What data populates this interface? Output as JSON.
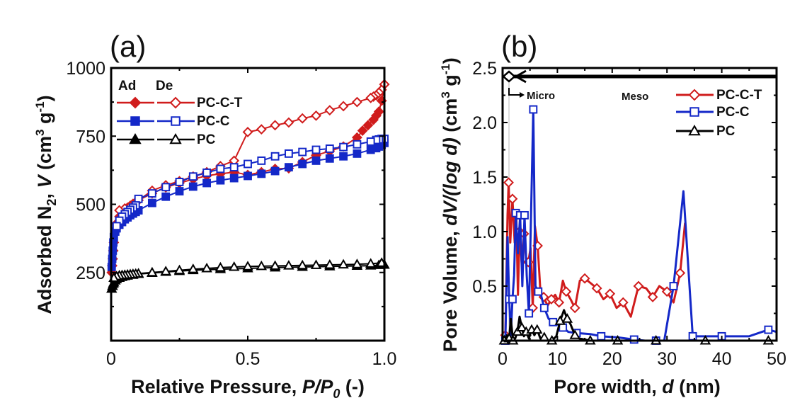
{
  "colors": {
    "pcct": "#d01c1c",
    "pcc": "#1428c8",
    "pc": "#000000",
    "frame": "#000000"
  },
  "chart_data": [
    {
      "panel": "(a)",
      "type": "line",
      "title": "",
      "xlabel": "Relative Pressure, P/P0 (-)",
      "xlabel_parts": {
        "main": "Relative Pressure, ",
        "italic": "P/P",
        "sub": "0",
        "tail": " (-)"
      },
      "ylabel": "Adsorbed N2, V (cm3 g-1)",
      "ylabel_parts": {
        "a": "Adsorbed N",
        "sub": "2",
        "b": ", ",
        "italic": "V",
        "c": " (cm",
        "sup1": "3",
        "d": " g",
        "sup2": "-1",
        "e": ")"
      },
      "xlim": [
        0,
        1.0
      ],
      "ylim": [
        0,
        1000
      ],
      "xticks": [
        0,
        0.5,
        1.0
      ],
      "xtick_labels": [
        "0",
        "0.5",
        "1.0"
      ],
      "yticks": [
        250,
        500,
        750,
        1000
      ],
      "ytick_labels": [
        "250",
        "500",
        "750",
        "1000"
      ],
      "grid": false,
      "legend": {
        "placement": "top-left",
        "header_ad": "Ad",
        "header_de": "De",
        "entries": [
          "PC-C-T",
          "PC-C",
          "PC"
        ]
      },
      "series": [
        {
          "name": "PC-C-T",
          "branch": "adsorption",
          "marker": "diamond-filled",
          "color_key": "pcct",
          "x": [
            0.002,
            0.004,
            0.006,
            0.008,
            0.01,
            0.015,
            0.02,
            0.03,
            0.04,
            0.05,
            0.06,
            0.07,
            0.08,
            0.09,
            0.1,
            0.15,
            0.2,
            0.25,
            0.3,
            0.35,
            0.4,
            0.45,
            0.5,
            0.55,
            0.6,
            0.65,
            0.7,
            0.75,
            0.8,
            0.85,
            0.9,
            0.92,
            0.94,
            0.96,
            0.97,
            0.98,
            0.99,
            1.0
          ],
          "y": [
            250,
            275,
            300,
            330,
            360,
            400,
            430,
            455,
            468,
            478,
            488,
            495,
            502,
            508,
            515,
            540,
            562,
            578,
            592,
            605,
            612,
            618,
            608,
            618,
            630,
            632,
            655,
            680,
            695,
            712,
            745,
            770,
            790,
            810,
            825,
            840,
            880,
            940
          ]
        },
        {
          "name": "PC-C-T",
          "branch": "desorption",
          "marker": "diamond-open",
          "color_key": "pcct",
          "x": [
            1.0,
            0.99,
            0.98,
            0.97,
            0.96,
            0.95,
            0.9,
            0.85,
            0.8,
            0.75,
            0.7,
            0.65,
            0.6,
            0.55,
            0.5,
            0.45,
            0.4,
            0.35,
            0.3,
            0.25,
            0.2,
            0.15,
            0.1,
            0.07,
            0.05,
            0.03
          ],
          "y": [
            940,
            920,
            910,
            900,
            895,
            890,
            875,
            860,
            845,
            825,
            815,
            800,
            790,
            775,
            765,
            660,
            640,
            618,
            602,
            585,
            570,
            550,
            515,
            492,
            485,
            478
          ]
        },
        {
          "name": "PC-C",
          "branch": "adsorption",
          "marker": "square-filled",
          "color_key": "pcc",
          "x": [
            0.002,
            0.004,
            0.006,
            0.008,
            0.01,
            0.015,
            0.02,
            0.03,
            0.04,
            0.05,
            0.06,
            0.07,
            0.08,
            0.09,
            0.1,
            0.15,
            0.2,
            0.25,
            0.3,
            0.35,
            0.4,
            0.45,
            0.5,
            0.55,
            0.6,
            0.65,
            0.7,
            0.75,
            0.8,
            0.85,
            0.9,
            0.95,
            0.97,
            0.98,
            0.99,
            1.0
          ],
          "y": [
            270,
            300,
            330,
            360,
            380,
            400,
            412,
            425,
            435,
            445,
            452,
            460,
            466,
            472,
            478,
            505,
            528,
            548,
            565,
            578,
            588,
            596,
            604,
            612,
            622,
            636,
            648,
            660,
            668,
            676,
            686,
            700,
            706,
            712,
            718,
            725
          ]
        },
        {
          "name": "PC-C",
          "branch": "desorption",
          "marker": "square-open",
          "color_key": "pcc",
          "x": [
            1.0,
            0.99,
            0.98,
            0.97,
            0.95,
            0.9,
            0.85,
            0.8,
            0.75,
            0.7,
            0.65,
            0.6,
            0.55,
            0.5,
            0.45,
            0.4,
            0.35,
            0.3,
            0.25,
            0.2,
            0.15,
            0.1,
            0.09,
            0.08,
            0.07,
            0.06,
            0.05,
            0.04,
            0.03,
            0.02
          ],
          "y": [
            740,
            740,
            738,
            736,
            730,
            720,
            710,
            704,
            700,
            692,
            686,
            676,
            660,
            648,
            636,
            630,
            616,
            602,
            582,
            563,
            540,
            520,
            496,
            488,
            480,
            472,
            464,
            455,
            440,
            420
          ]
        },
        {
          "name": "PC",
          "branch": "adsorption",
          "marker": "triangle-filled",
          "color_key": "pc",
          "x": [
            0.002,
            0.005,
            0.008,
            0.01,
            0.015,
            0.02,
            0.03,
            0.04,
            0.05,
            0.06,
            0.08,
            0.1,
            0.15,
            0.2,
            0.25,
            0.3,
            0.4,
            0.5,
            0.6,
            0.7,
            0.8,
            0.9,
            0.95,
            0.98,
            1.0
          ],
          "y": [
            190,
            200,
            208,
            213,
            220,
            225,
            230,
            233,
            236,
            238,
            241,
            244,
            248,
            252,
            255,
            258,
            262,
            265,
            268,
            270,
            272,
            274,
            275,
            277,
            278
          ]
        },
        {
          "name": "PC",
          "branch": "desorption",
          "marker": "triangle-open",
          "color_key": "pc",
          "x": [
            0.99,
            0.95,
            0.9,
            0.85,
            0.8,
            0.75,
            0.7,
            0.65,
            0.6,
            0.55,
            0.5,
            0.45,
            0.4,
            0.35,
            0.3,
            0.25,
            0.2,
            0.15,
            0.1,
            0.09,
            0.08,
            0.07,
            0.06,
            0.05,
            0.04,
            0.03,
            0.02,
            0.01
          ],
          "y": [
            285,
            282,
            280,
            279,
            278,
            277,
            276,
            275,
            274,
            273,
            272,
            270,
            268,
            265,
            262,
            258,
            254,
            250,
            246,
            245,
            244,
            243,
            242,
            241,
            240,
            239,
            236,
            230
          ]
        }
      ]
    },
    {
      "panel": "(b)",
      "type": "line",
      "title": "",
      "xlabel": "Pore width, d (nm)",
      "xlabel_parts": {
        "main": "Pore width, ",
        "italic": "d",
        "tail": " (nm)"
      },
      "ylabel": "Pore Volume, dV/(log d) (cm3 g-1)",
      "ylabel_parts": {
        "a": "Pore Volume, ",
        "italic": "dV/(log d)",
        "c": " (cm",
        "sup1": "3",
        "d": " g",
        "sup2": "-1",
        "e": ")"
      },
      "xlim": [
        0,
        50
      ],
      "ylim": [
        0,
        2.5
      ],
      "xticks": [
        0,
        10,
        20,
        30,
        40,
        50
      ],
      "xtick_labels": [
        "0",
        "10",
        "20",
        "30",
        "40",
        "50"
      ],
      "yticks": [
        0.5,
        1.0,
        1.5,
        2.0,
        2.5
      ],
      "ytick_labels": [
        "0.5",
        "1.0",
        "1.5",
        "2.0",
        "2.5"
      ],
      "grid": false,
      "legend": {
        "placement": "top-right",
        "entries": [
          "PC-C-T",
          "PC-C",
          "PC"
        ]
      },
      "annotations": {
        "micro": "Micro",
        "meso": "Meso",
        "micro_meso_boundary_nm": 2
      },
      "series": [
        {
          "name": "PC-C-T",
          "marker": "diamond-open",
          "color_key": "pcct",
          "x": [
            0.5,
            0.9,
            1.1,
            1.4,
            1.8,
            2.2,
            2.5,
            2.8,
            3.1,
            3.5,
            3.9,
            4.3,
            4.7,
            5.1,
            5.5,
            5.9,
            6.4,
            6.9,
            7.5,
            8.2,
            8.9,
            9.6,
            10.3,
            11.0,
            11.6,
            12.4,
            13.2,
            14.1,
            15.0,
            16.0,
            17.2,
            18.4,
            19.6,
            20.8,
            22.0,
            23.4,
            24.8,
            26.2,
            27.4,
            28.6,
            30.0,
            31.2,
            32.4,
            33.3
          ],
          "y": [
            0.05,
            1.15,
            1.45,
            0.9,
            1.3,
            0.9,
            1.15,
            0.42,
            1.0,
            0.7,
            0.98,
            0.75,
            0.72,
            0.85,
            0.3,
            1.05,
            0.87,
            0.45,
            0.4,
            0.32,
            0.38,
            0.42,
            0.35,
            0.55,
            0.45,
            0.38,
            0.3,
            0.55,
            0.57,
            0.53,
            0.48,
            0.38,
            0.43,
            0.3,
            0.35,
            0.22,
            0.5,
            0.48,
            0.4,
            0.5,
            0.45,
            0.35,
            0.62,
            1.08
          ]
        },
        {
          "name": "PC-C",
          "marker": "square-open",
          "color_key": "pcc",
          "x": [
            0.5,
            0.9,
            1.2,
            1.5,
            1.8,
            2.1,
            2.4,
            2.8,
            3.2,
            3.6,
            4.0,
            4.4,
            4.8,
            5.2,
            5.6,
            6.0,
            6.5,
            7.0,
            7.6,
            8.4,
            9.2,
            10.0,
            11.0,
            12.0,
            13.5,
            16.0,
            18.0,
            21.0,
            24.0,
            26.0,
            28.0,
            29.5,
            31.2,
            33.0,
            34.7,
            37.0,
            40.0,
            45.0,
            48.5,
            50.0
          ],
          "y": [
            0.0,
            0.95,
            0.38,
            0.05,
            0.38,
            0.6,
            1.17,
            0.8,
            1.15,
            0.5,
            1.15,
            0.6,
            0.25,
            1.18,
            2.12,
            0.5,
            0.45,
            0.42,
            0.3,
            0.2,
            0.17,
            0.15,
            0.12,
            0.08,
            0.07,
            0.06,
            0.04,
            0.03,
            0.01,
            0.0,
            0.0,
            0.0,
            0.5,
            1.37,
            0.04,
            0.04,
            0.04,
            0.04,
            0.1,
            0.08
          ]
        },
        {
          "name": "PC",
          "marker": "triangle-open",
          "color_key": "pc",
          "x": [
            0.3,
            0.8,
            1.2,
            1.5,
            1.9,
            2.3,
            2.7,
            3.1,
            3.5,
            3.9,
            4.3,
            4.8,
            5.3,
            5.8,
            6.3,
            6.9,
            7.6,
            8.3,
            9.0,
            9.8,
            10.5,
            11.2,
            11.8,
            12.4,
            13.2,
            14.0,
            16.0,
            18.0,
            21.0,
            24.0,
            28.0,
            32.0,
            37.0,
            42.0,
            48.5,
            50.0
          ],
          "y": [
            0.0,
            0.05,
            0.02,
            0.2,
            0.0,
            0.02,
            0.08,
            0.22,
            0.12,
            0.04,
            0.08,
            0.02,
            0.1,
            0.05,
            0.1,
            0.02,
            0.03,
            0.0,
            0.0,
            0.04,
            0.18,
            0.28,
            0.2,
            0.15,
            0.05,
            0.02,
            0.0,
            0.0,
            0.0,
            0.0,
            0.0,
            0.0,
            0.0,
            0.0,
            0.0,
            0.0
          ]
        }
      ]
    }
  ]
}
